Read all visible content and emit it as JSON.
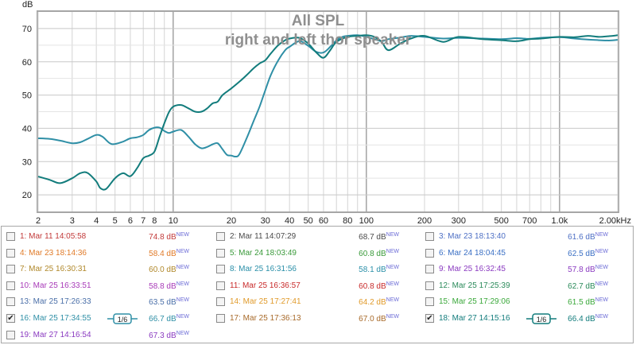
{
  "chart_data": {
    "type": "line",
    "title": "All SPL",
    "subtitle": "right and left thor speaker",
    "ylabel": "dB",
    "xlabel": "",
    "xscale": "log",
    "xlim": [
      2,
      2000
    ],
    "ylim": [
      15,
      75
    ],
    "grid": true,
    "y_ticks": [
      20,
      30,
      40,
      50,
      60,
      70
    ],
    "x_ticks": [
      {
        "value": 2,
        "label": "2"
      },
      {
        "value": 3,
        "label": "3"
      },
      {
        "value": 4,
        "label": "4"
      },
      {
        "value": 5,
        "label": "5"
      },
      {
        "value": 6,
        "label": "6"
      },
      {
        "value": 7,
        "label": "7"
      },
      {
        "value": 8,
        "label": "8"
      },
      {
        "value": 10,
        "label": "10"
      },
      {
        "value": 20,
        "label": "20"
      },
      {
        "value": 30,
        "label": "30"
      },
      {
        "value": 40,
        "label": "40"
      },
      {
        "value": 50,
        "label": "50"
      },
      {
        "value": 60,
        "label": "60"
      },
      {
        "value": 80,
        "label": "80"
      },
      {
        "value": 100,
        "label": "100"
      },
      {
        "value": 200,
        "label": "200"
      },
      {
        "value": 300,
        "label": "300"
      },
      {
        "value": 500,
        "label": "500"
      },
      {
        "value": 700,
        "label": "700"
      },
      {
        "value": 1000,
        "label": "1.0k"
      },
      {
        "value": 2000,
        "label": "2.00kHz"
      }
    ],
    "series": [
      {
        "name": "16: Mar 25 17:34:55",
        "color": "#2f8fa6",
        "x": [
          2,
          2.3,
          2.6,
          3,
          3.3,
          3.6,
          4,
          4.3,
          4.7,
          5,
          5.5,
          6,
          6.5,
          7,
          7.5,
          8,
          8.5,
          9,
          9.5,
          10,
          11,
          12,
          13,
          14,
          15,
          16,
          17,
          18,
          19,
          20,
          21,
          22,
          24,
          26,
          28,
          30,
          32,
          35,
          38,
          40,
          45,
          50,
          55,
          60,
          65,
          70,
          75,
          80,
          90,
          100,
          110,
          120,
          130,
          150,
          170,
          200,
          250,
          300,
          400,
          500,
          600,
          700,
          800,
          1000,
          1200,
          1400,
          1600,
          1800,
          2000
        ],
        "values": [
          37,
          36.8,
          36.3,
          35.5,
          35.8,
          36.8,
          38,
          37.5,
          35.5,
          35.3,
          36,
          37,
          37.3,
          38,
          39.5,
          40.2,
          40.2,
          39.2,
          38.6,
          39,
          39.5,
          37.5,
          35.2,
          34,
          34.4,
          35.2,
          35.5,
          33.7,
          32,
          31.8,
          31.5,
          32.2,
          37,
          42,
          46.5,
          51.5,
          56,
          60.5,
          63.5,
          64.5,
          66.2,
          64.8,
          63,
          62.8,
          64.5,
          66.5,
          67.5,
          67.8,
          68,
          67.5,
          66.8,
          66.2,
          66.8,
          67.3,
          67.8,
          67.5,
          67,
          67.2,
          67,
          66.8,
          67.1,
          66.9,
          67.2,
          67.4,
          67,
          66.7,
          66.5,
          66.4,
          66.6
        ]
      },
      {
        "name": "18: Mar 27 14:15:16",
        "color": "#127c7c",
        "x": [
          2,
          2.3,
          2.6,
          3,
          3.3,
          3.6,
          4,
          4.2,
          4.5,
          5,
          5.5,
          6,
          6.5,
          7,
          7.5,
          8,
          8.5,
          9,
          9.5,
          10,
          11,
          12,
          13,
          14,
          15,
          16,
          17,
          18,
          20,
          22,
          24,
          26,
          28,
          30,
          32,
          35,
          38,
          40,
          45,
          50,
          55,
          60,
          65,
          70,
          80,
          90,
          100,
          110,
          120,
          130,
          150,
          170,
          200,
          250,
          300,
          400,
          500,
          600,
          700,
          800,
          1000,
          1200,
          1400,
          1600,
          1800,
          2000
        ],
        "values": [
          25.5,
          24.5,
          23.5,
          25,
          26.5,
          26.6,
          24,
          22,
          21.8,
          25,
          26.5,
          25.6,
          28,
          31,
          31.8,
          33,
          37.5,
          41.5,
          44.8,
          46.5,
          47,
          46,
          45,
          45,
          46,
          47.5,
          48,
          50,
          52,
          54,
          56,
          58,
          59.5,
          60.5,
          62.5,
          65,
          66.5,
          67,
          67.2,
          65.5,
          62.8,
          61.2,
          63.5,
          66,
          67.5,
          67.8,
          68,
          67.5,
          66,
          63.5,
          65.5,
          67,
          67.8,
          66,
          67.5,
          66.8,
          66.5,
          66.2,
          66.8,
          67,
          67.5,
          67.4,
          67.8,
          67.5,
          67.7,
          68
        ]
      }
    ]
  },
  "legend": {
    "items": [
      {
        "name": "1: Mar 11 14:05:58",
        "value": "74.8 dB",
        "badge": "NEW",
        "color": "#c23a3a",
        "checked": false
      },
      {
        "name": "2: Mar 11 14:07:29",
        "value": "68.7 dB",
        "badge": "NEW",
        "color": "#4a4a4a",
        "checked": false
      },
      {
        "name": "3: Mar 23 18:13:40",
        "value": "61.6 dB",
        "badge": "NEW",
        "color": "#4d6fc4",
        "checked": false
      },
      {
        "name": "4: Mar 23 18:14:36",
        "value": "58.4 dB",
        "badge": "NEW",
        "color": "#e07a28",
        "checked": false
      },
      {
        "name": "5: Mar 24 18:03:49",
        "value": "60.8 dB",
        "badge": "NEW",
        "color": "#3a9a3a",
        "checked": false
      },
      {
        "name": "6: Mar 24 18:04:45",
        "value": "62.5 dB",
        "badge": "NEW",
        "color": "#3a6fc4",
        "checked": false
      },
      {
        "name": "7: Mar 25 16:30:31",
        "value": "60.0 dB",
        "badge": "NEW",
        "color": "#b0882a",
        "checked": false
      },
      {
        "name": "8: Mar 25 16:31:56",
        "value": "58.1 dB",
        "badge": "NEW",
        "color": "#2a8fa8",
        "checked": false
      },
      {
        "name": "9: Mar 25 16:32:45",
        "value": "57.8 dB",
        "badge": "NEW",
        "color": "#8a3ac0",
        "checked": false
      },
      {
        "name": "10: Mar 25 16:33:51",
        "value": "58.8 dB",
        "badge": "NEW",
        "color": "#a83ab8",
        "checked": false
      },
      {
        "name": "11: Mar 25 16:36:57",
        "value": "60.8 dB",
        "badge": "NEW",
        "color": "#c82a2a",
        "checked": false
      },
      {
        "name": "12: Mar 25 17:25:39",
        "value": "62.7 dB",
        "badge": "NEW",
        "color": "#2a8a5a",
        "checked": false
      },
      {
        "name": "13: Mar 25 17:26:33",
        "value": "63.5 dB",
        "badge": "NEW",
        "color": "#4a6fa8",
        "checked": false
      },
      {
        "name": "14: Mar 25 17:27:41",
        "value": "64.2 dB",
        "badge": "NEW",
        "color": "#e09a2a",
        "checked": false
      },
      {
        "name": "15: Mar 25 17:29:06",
        "value": "61.5 dB",
        "badge": "NEW",
        "color": "#3aa83a",
        "checked": false
      },
      {
        "name": "16: Mar 25 17:34:55",
        "value": "66.7 dB",
        "badge": "NEW",
        "color": "#2f8fa6",
        "checked": true,
        "smoothing": "1/6"
      },
      {
        "name": "17: Mar 25 17:36:13",
        "value": "67.0 dB",
        "badge": "NEW",
        "color": "#a86a2a",
        "checked": false
      },
      {
        "name": "18: Mar 27 14:15:16",
        "value": "66.4 dB",
        "badge": "NEW",
        "color": "#127c7c",
        "checked": true,
        "smoothing": "1/6"
      },
      {
        "name": "19: Mar 27 14:16:54",
        "value": "67.3 dB",
        "badge": "NEW",
        "color": "#8a3ac0",
        "checked": false
      }
    ]
  }
}
